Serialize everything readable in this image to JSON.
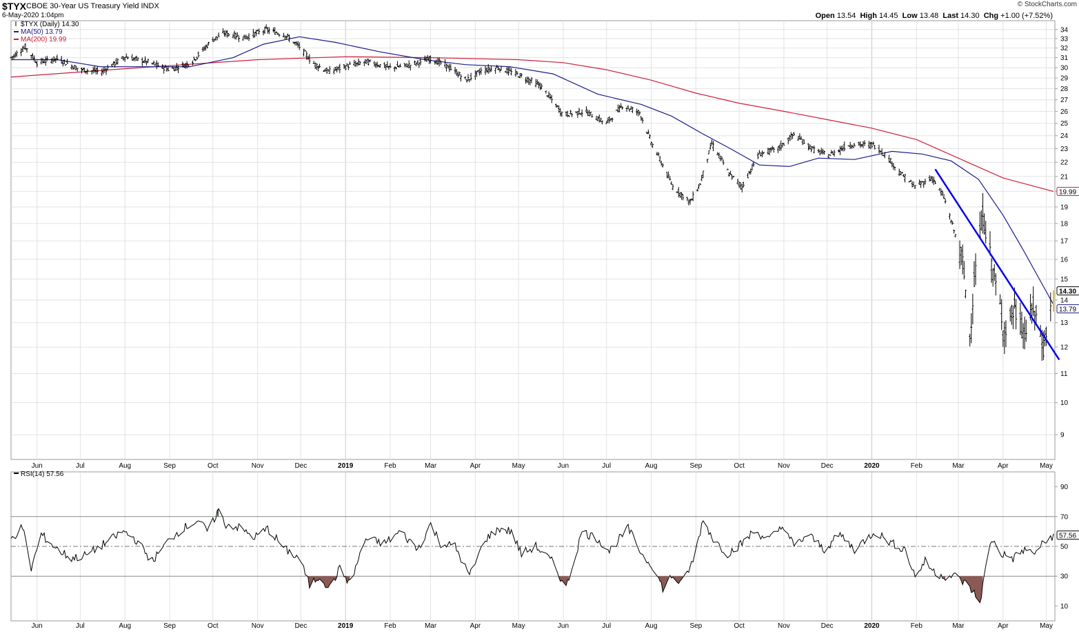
{
  "header": {
    "symbol": "$TYX",
    "name": "CBOE 30-Year US Treasury Yield INDX",
    "datetime": "6-May-2020 1:04pm",
    "brand": "© StockCharts.com",
    "open_label": "Open",
    "open": "13.54",
    "high_label": "High",
    "high": "14.45",
    "low_label": "Low",
    "low": "13.48",
    "last_label": "Last",
    "last": "14.30",
    "chg_label": "Chg",
    "chg": "+1.00 (+7.52%)",
    "chg_color": "#000000"
  },
  "legend": {
    "price": "$TYX (Daily) 14.30",
    "ma50": "MA(50) 13.79",
    "ma200": "MA(200) 19.99",
    "rsi": "RSI(14) 57.56"
  },
  "colors": {
    "price": "#000000",
    "ma50": "#1a1a8c",
    "ma200": "#cc1f3a",
    "trendline": "#0000ee",
    "last_bar": "#e8c21a",
    "rsi_overbought_fill": "#3b6b3b",
    "rsi_oversold_fill": "#8b5a55",
    "grid": "#e2e2e2"
  },
  "chart_data": [
    {
      "type": "line",
      "title": "$TYX (Daily) 14.30",
      "x_start": "2018-05-14",
      "x_end": "2020-05-06",
      "x_tick_labels": [
        "Jun",
        "Jul",
        "Aug",
        "Sep",
        "Oct",
        "Nov",
        "Dec",
        "2019",
        "Feb",
        "Mar",
        "Apr",
        "May",
        "Jun",
        "Jul",
        "Aug",
        "Sep",
        "Oct",
        "Nov",
        "Dec",
        "2020",
        "Feb",
        "Mar",
        "Apr",
        "May"
      ],
      "x_tick_dates": [
        "2018-06-01",
        "2018-07-01",
        "2018-08-01",
        "2018-09-01",
        "2018-10-01",
        "2018-11-01",
        "2018-12-01",
        "2019-01-01",
        "2019-02-01",
        "2019-03-01",
        "2019-04-01",
        "2019-05-01",
        "2019-06-01",
        "2019-07-01",
        "2019-08-01",
        "2019-09-01",
        "2019-10-01",
        "2019-11-01",
        "2019-12-01",
        "2020-01-01",
        "2020-02-01",
        "2020-03-01",
        "2020-04-01",
        "2020-05-01"
      ],
      "y_scale": "log",
      "ylim": [
        8.3,
        35
      ],
      "y_ticks": [
        9,
        10,
        11,
        12,
        13,
        14,
        15,
        16,
        17,
        18,
        19,
        20,
        21,
        22,
        23,
        24,
        25,
        26,
        27,
        28,
        29,
        30,
        31,
        32,
        33,
        34
      ],
      "series": [
        {
          "name": "$TYX (Daily) 14.30",
          "style": "ohlc_bars",
          "x": [
            "2018-05-14",
            "2018-05-24",
            "2018-06-01",
            "2018-06-15",
            "2018-07-01",
            "2018-07-16",
            "2018-08-01",
            "2018-08-16",
            "2018-09-01",
            "2018-09-16",
            "2018-10-01",
            "2018-10-09",
            "2018-10-23",
            "2018-11-07",
            "2018-11-20",
            "2018-12-01",
            "2018-12-09",
            "2018-12-20",
            "2019-01-03",
            "2019-01-16",
            "2019-02-01",
            "2019-02-16",
            "2019-03-01",
            "2019-03-12",
            "2019-03-26",
            "2019-04-05",
            "2019-04-17",
            "2019-05-01",
            "2019-05-16",
            "2019-06-01",
            "2019-06-16",
            "2019-07-01",
            "2019-07-12",
            "2019-07-24",
            "2019-08-01",
            "2019-08-08",
            "2019-08-16",
            "2019-08-28",
            "2019-09-04",
            "2019-09-12",
            "2019-09-24",
            "2019-10-03",
            "2019-10-15",
            "2019-10-28",
            "2019-11-08",
            "2019-11-22",
            "2019-12-02",
            "2019-12-16",
            "2020-01-02",
            "2020-01-10",
            "2020-01-20",
            "2020-01-31",
            "2020-02-12",
            "2020-02-20",
            "2020-02-28",
            "2020-03-04",
            "2020-03-09",
            "2020-03-12",
            "2020-03-18",
            "2020-03-26",
            "2020-04-02",
            "2020-04-09",
            "2020-04-16",
            "2020-04-22",
            "2020-04-29",
            "2020-05-06"
          ],
          "y": [
            31.0,
            32.1,
            30.5,
            30.9,
            29.8,
            29.6,
            31.1,
            30.6,
            29.8,
            30.5,
            32.9,
            33.6,
            33.1,
            34.0,
            33.4,
            32.0,
            30.5,
            29.6,
            30.2,
            30.6,
            30.0,
            30.3,
            30.9,
            30.2,
            28.8,
            29.7,
            30.0,
            29.3,
            28.3,
            25.7,
            26.0,
            25.0,
            26.5,
            25.9,
            23.5,
            22.0,
            20.3,
            19.3,
            20.5,
            23.4,
            21.2,
            20.3,
            22.6,
            23.0,
            24.1,
            22.9,
            22.5,
            23.3,
            23.3,
            22.6,
            21.3,
            20.3,
            20.9,
            19.6,
            17.3,
            15.8,
            12.4,
            14.9,
            18.5,
            15.0,
            12.6,
            13.6,
            12.5,
            13.7,
            12.0,
            14.3
          ],
          "last_bar": {
            "open": 13.54,
            "high": 14.45,
            "low": 13.48,
            "close": 14.3
          }
        },
        {
          "name": "MA(50) 13.79",
          "style": "line",
          "x": [
            "2018-05-14",
            "2018-06-15",
            "2018-07-15",
            "2018-08-15",
            "2018-09-15",
            "2018-10-15",
            "2018-11-05",
            "2018-11-30",
            "2018-12-25",
            "2019-01-25",
            "2019-02-25",
            "2019-03-25",
            "2019-04-25",
            "2019-05-25",
            "2019-06-25",
            "2019-07-25",
            "2019-08-15",
            "2019-09-05",
            "2019-09-25",
            "2019-10-15",
            "2019-11-05",
            "2019-11-25",
            "2019-12-20",
            "2020-01-15",
            "2020-02-05",
            "2020-02-25",
            "2020-03-15",
            "2020-04-01",
            "2020-04-15",
            "2020-05-06"
          ],
          "y": [
            30.8,
            30.8,
            30.1,
            30.1,
            30.1,
            31.0,
            32.4,
            33.2,
            32.6,
            31.6,
            30.8,
            30.3,
            30.1,
            29.4,
            27.5,
            26.6,
            25.6,
            24.2,
            23.0,
            21.8,
            21.7,
            22.3,
            22.2,
            22.8,
            22.6,
            22.1,
            20.8,
            18.5,
            16.5,
            13.79
          ]
        },
        {
          "name": "MA(200) 19.99",
          "style": "line",
          "x": [
            "2018-05-14",
            "2018-08-01",
            "2018-11-01",
            "2019-01-01",
            "2019-03-01",
            "2019-05-01",
            "2019-06-01",
            "2019-07-01",
            "2019-08-01",
            "2019-09-01",
            "2019-10-01",
            "2019-11-01",
            "2019-12-01",
            "2020-01-01",
            "2020-02-01",
            "2020-03-01",
            "2020-04-01",
            "2020-05-06"
          ],
          "y": [
            29.1,
            29.9,
            30.8,
            31.1,
            31.0,
            30.8,
            30.5,
            29.8,
            28.8,
            27.6,
            26.7,
            26.0,
            25.3,
            24.6,
            23.7,
            22.3,
            20.9,
            19.99
          ]
        }
      ],
      "trendline": {
        "x": [
          "2020-02-14",
          "2020-05-06"
        ],
        "y": [
          21.5,
          11.85
        ]
      },
      "right_labels": [
        "19.99",
        "14.30",
        "13.79"
      ]
    },
    {
      "type": "line",
      "title": "RSI(14) 57.56",
      "ylim": [
        0,
        100
      ],
      "y_ticks": [
        10,
        30,
        50,
        70,
        90
      ],
      "reference_lines": [
        30,
        50,
        70
      ],
      "series": [
        {
          "name": "RSI(14) 57.56",
          "x": [
            "2018-05-14",
            "2018-05-22",
            "2018-05-28",
            "2018-06-04",
            "2018-06-15",
            "2018-06-25",
            "2018-07-05",
            "2018-07-18",
            "2018-07-31",
            "2018-08-08",
            "2018-08-20",
            "2018-09-01",
            "2018-09-10",
            "2018-09-20",
            "2018-09-28",
            "2018-10-05",
            "2018-10-09",
            "2018-10-18",
            "2018-10-30",
            "2018-11-08",
            "2018-11-20",
            "2018-11-30",
            "2018-12-07",
            "2018-12-14",
            "2018-12-21",
            "2018-12-28",
            "2019-01-04",
            "2019-01-15",
            "2019-01-28",
            "2019-02-08",
            "2019-02-20",
            "2019-03-01",
            "2019-03-08",
            "2019-03-18",
            "2019-03-28",
            "2019-04-08",
            "2019-04-18",
            "2019-04-26",
            "2019-05-03",
            "2019-05-13",
            "2019-05-24",
            "2019-06-03",
            "2019-06-14",
            "2019-06-25",
            "2019-07-03",
            "2019-07-16",
            "2019-07-26",
            "2019-08-02",
            "2019-08-09",
            "2019-08-15",
            "2019-08-22",
            "2019-08-30",
            "2019-09-06",
            "2019-09-13",
            "2019-09-23",
            "2019-10-03",
            "2019-10-11",
            "2019-10-22",
            "2019-11-01",
            "2019-11-08",
            "2019-11-18",
            "2019-11-29",
            "2019-12-10",
            "2019-12-20",
            "2020-01-03",
            "2020-01-15",
            "2020-01-24",
            "2020-01-31",
            "2020-02-07",
            "2020-02-14",
            "2020-02-21",
            "2020-02-28",
            "2020-03-06",
            "2020-03-11",
            "2020-03-16",
            "2020-03-19",
            "2020-03-24",
            "2020-03-31",
            "2020-04-08",
            "2020-04-16",
            "2020-04-22",
            "2020-04-29",
            "2020-05-06"
          ],
          "y": [
            55,
            63,
            35,
            58,
            48,
            42,
            44,
            52,
            60,
            55,
            40,
            55,
            62,
            67,
            60,
            75,
            65,
            63,
            56,
            62,
            48,
            42,
            24,
            30,
            22,
            35,
            25,
            55,
            52,
            60,
            48,
            65,
            52,
            50,
            30,
            55,
            62,
            60,
            45,
            50,
            40,
            22,
            60,
            55,
            47,
            62,
            44,
            37,
            22,
            30,
            25,
            40,
            68,
            55,
            45,
            52,
            60,
            55,
            64,
            50,
            58,
            48,
            58,
            48,
            60,
            52,
            48,
            30,
            40,
            32,
            30,
            30,
            25,
            20,
            12,
            30,
            55,
            45,
            42,
            48,
            45,
            52,
            57.56
          ]
        }
      ],
      "x_tick_labels": [
        "Jun",
        "Jul",
        "Aug",
        "Sep",
        "Oct",
        "Nov",
        "Dec",
        "2019",
        "Feb",
        "Mar",
        "Apr",
        "May",
        "Jun",
        "Jul",
        "Aug",
        "Sep",
        "Oct",
        "Nov",
        "Dec",
        "2020",
        "Feb",
        "Mar",
        "Apr",
        "May"
      ],
      "right_label": "57.56"
    }
  ]
}
